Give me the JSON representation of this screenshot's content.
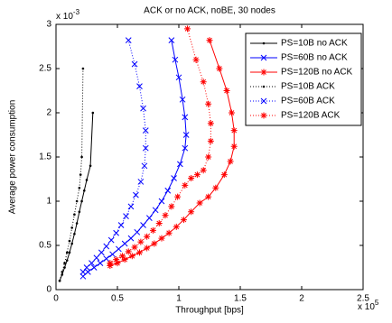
{
  "chart_data": {
    "type": "line",
    "title": "ACK or no ACK, noBE, 30 nodes",
    "x_label": "Throughput [bps]",
    "y_label": "Average power consumption",
    "x_multiplier": {
      "base": "x 10",
      "exponent": "5"
    },
    "y_multiplier": {
      "base": "x 10",
      "exponent": "-3"
    },
    "xlim": [
      0,
      2.5
    ],
    "ylim": [
      0,
      3
    ],
    "xticks": [
      0,
      0.5,
      1,
      1.5,
      2,
      2.5
    ],
    "yticks": [
      0,
      0.5,
      1,
      1.5,
      2,
      2.5,
      3
    ],
    "legend": "upper right",
    "series": [
      {
        "name": "PS=10B no ACK",
        "color": "#000000",
        "line_style": "solid",
        "marker": "dot",
        "x": [
          0.03,
          0.05,
          0.07,
          0.09,
          0.11,
          0.13,
          0.15,
          0.17,
          0.19,
          0.21,
          0.23,
          0.25,
          0.28,
          0.3
        ],
        "values": [
          0.1,
          0.17,
          0.25,
          0.33,
          0.42,
          0.52,
          0.63,
          0.75,
          0.88,
          1.0,
          1.12,
          1.24,
          1.4,
          2.0
        ]
      },
      {
        "name": "PS=60B no ACK",
        "color": "#0000ff",
        "line_style": "solid",
        "marker": "x",
        "x": [
          0.22,
          0.26,
          0.31,
          0.36,
          0.41,
          0.46,
          0.51,
          0.56,
          0.61,
          0.66,
          0.71,
          0.76,
          0.81,
          0.86,
          0.91,
          0.96,
          1.01,
          1.05,
          1.06,
          1.05,
          1.03,
          1.0,
          0.97,
          0.94
        ],
        "values": [
          0.15,
          0.2,
          0.25,
          0.3,
          0.35,
          0.4,
          0.46,
          0.52,
          0.58,
          0.65,
          0.73,
          0.81,
          0.9,
          1.0,
          1.12,
          1.26,
          1.42,
          1.6,
          1.75,
          1.95,
          2.15,
          2.4,
          2.6,
          2.82
        ]
      },
      {
        "name": "PS=120B no ACK",
        "color": "#ff0000",
        "line_style": "solid",
        "marker": "star",
        "x": [
          0.44,
          0.5,
          0.56,
          0.62,
          0.68,
          0.74,
          0.8,
          0.86,
          0.92,
          0.98,
          1.04,
          1.1,
          1.17,
          1.24,
          1.3,
          1.37,
          1.42,
          1.45,
          1.45,
          1.43,
          1.39,
          1.33,
          1.25
        ],
        "values": [
          0.27,
          0.3,
          0.34,
          0.38,
          0.42,
          0.47,
          0.52,
          0.58,
          0.64,
          0.71,
          0.79,
          0.88,
          0.98,
          1.05,
          1.15,
          1.3,
          1.45,
          1.62,
          1.8,
          2.0,
          2.25,
          2.5,
          2.82
        ]
      },
      {
        "name": "PS=10B ACK",
        "color": "#000000",
        "line_style": "dotted",
        "marker": "dot",
        "x": [
          0.03,
          0.05,
          0.07,
          0.09,
          0.11,
          0.13,
          0.15,
          0.17,
          0.19,
          0.2,
          0.21,
          0.22
        ],
        "values": [
          0.1,
          0.2,
          0.3,
          0.42,
          0.55,
          0.7,
          0.85,
          1.0,
          1.15,
          1.3,
          1.5,
          2.5
        ]
      },
      {
        "name": "PS=60B ACK",
        "color": "#0000ff",
        "line_style": "dotted",
        "marker": "x",
        "x": [
          0.22,
          0.25,
          0.29,
          0.33,
          0.37,
          0.41,
          0.45,
          0.49,
          0.53,
          0.57,
          0.61,
          0.65,
          0.69,
          0.72,
          0.73,
          0.73,
          0.71,
          0.68,
          0.64,
          0.59
        ],
        "values": [
          0.2,
          0.25,
          0.3,
          0.36,
          0.42,
          0.49,
          0.56,
          0.64,
          0.73,
          0.83,
          0.94,
          1.07,
          1.22,
          1.4,
          1.6,
          1.8,
          2.05,
          2.3,
          2.55,
          2.82
        ]
      },
      {
        "name": "PS=120B ACK",
        "color": "#ff0000",
        "line_style": "dotted",
        "marker": "star",
        "x": [
          0.44,
          0.49,
          0.54,
          0.59,
          0.64,
          0.69,
          0.74,
          0.79,
          0.84,
          0.89,
          0.94,
          0.99,
          1.05,
          1.1,
          1.15,
          1.2,
          1.24,
          1.26,
          1.26,
          1.24,
          1.2,
          1.14,
          1.07
        ],
        "values": [
          0.3,
          0.34,
          0.38,
          0.43,
          0.48,
          0.54,
          0.6,
          0.67,
          0.75,
          0.84,
          0.94,
          1.05,
          1.18,
          1.26,
          1.3,
          1.35,
          1.5,
          1.68,
          1.88,
          2.1,
          2.35,
          2.6,
          2.95
        ]
      }
    ]
  }
}
